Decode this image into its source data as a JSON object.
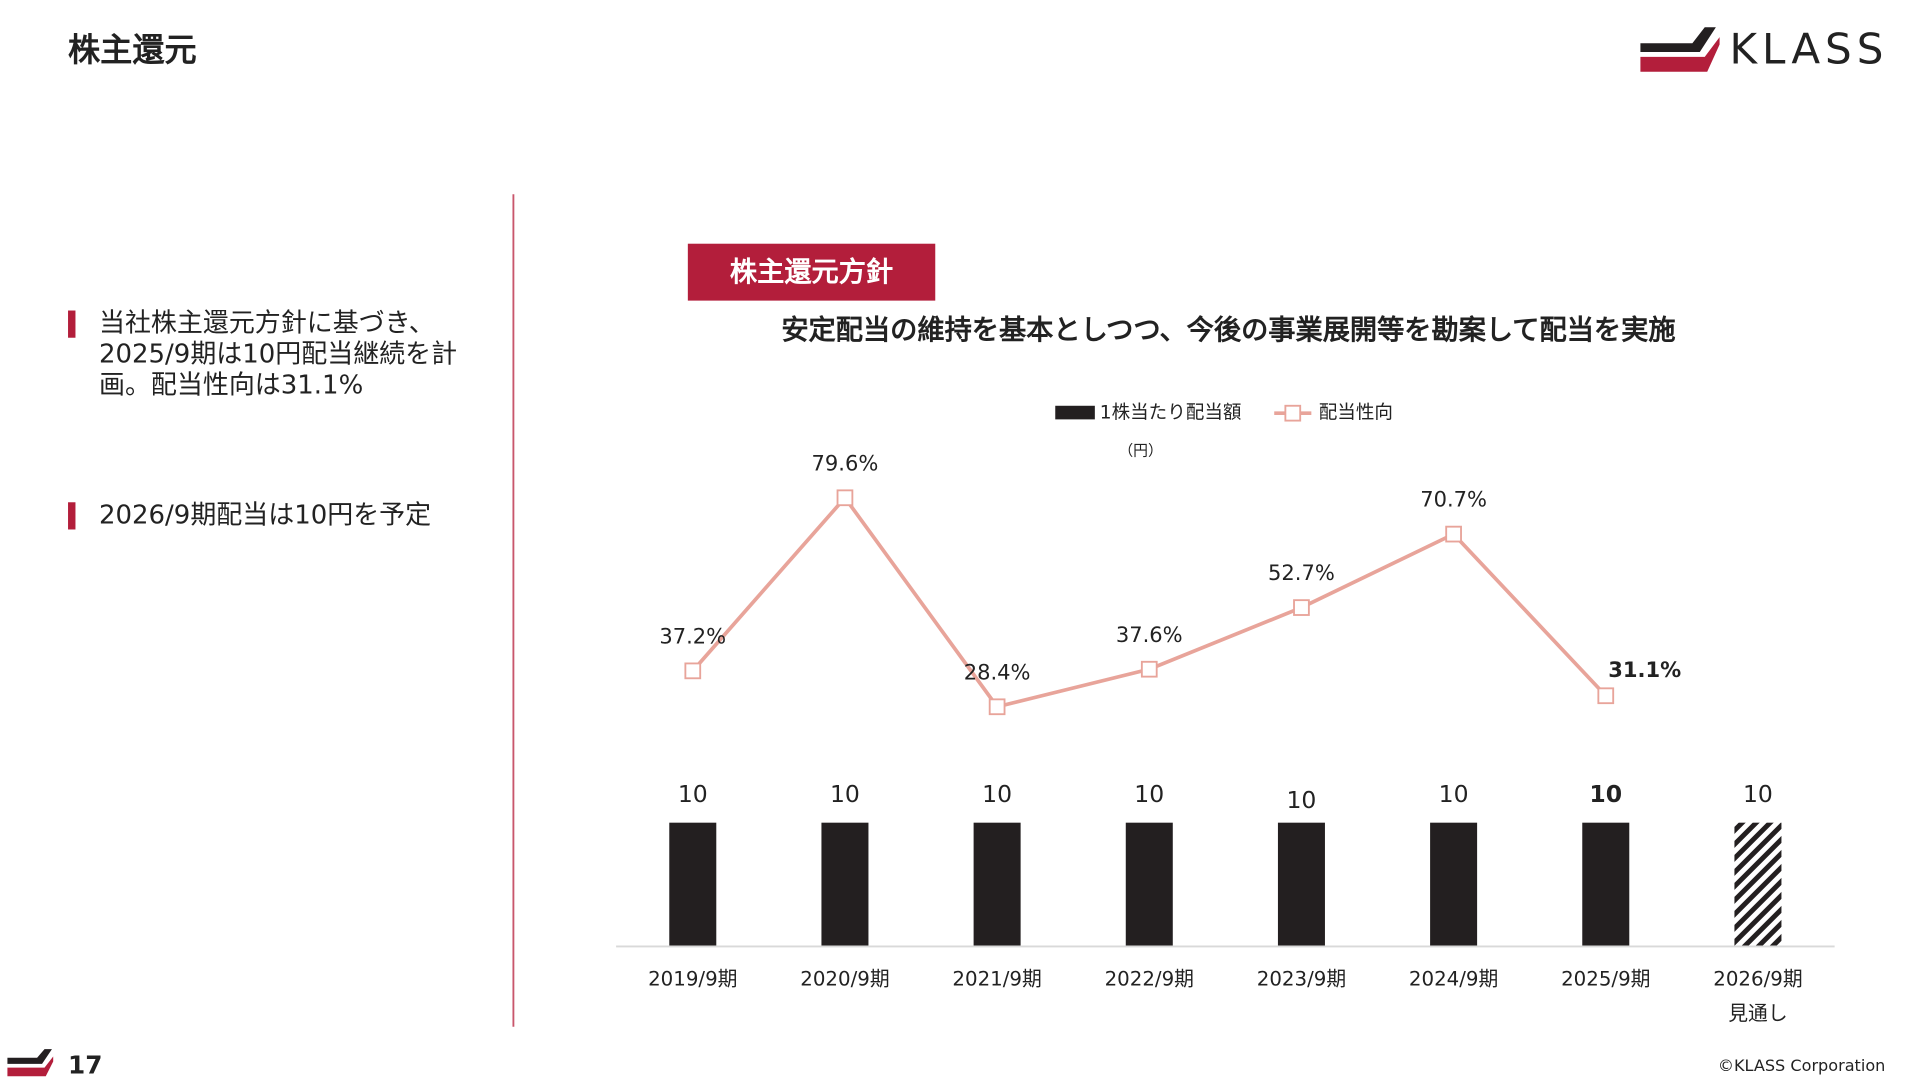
{
  "header": {
    "title": "株主還元",
    "logo": "KLASS"
  },
  "bullets": [
    {
      "lines": [
        "当社株主還元方針に基づき、",
        "2025/9期は10円配当継続を計",
        "画。配当性向は31.1%"
      ]
    },
    {
      "lines": [
        "2026/9期配当は10円を予定"
      ]
    }
  ],
  "policy": {
    "badge": "株主還元方針",
    "text": "安定配当の維持を基本としつつ、今後の事業展開等を勘案して配当を実施"
  },
  "footer": {
    "page": "17",
    "copyright": "©KLASS Corporation"
  },
  "chart_data": {
    "type": "bar-line",
    "categories": [
      "2019/9期",
      "2020/9期",
      "2021/9期",
      "2022/9期",
      "2023/9期",
      "2024/9期",
      "2025/9期",
      "2026/9期"
    ],
    "forecast_label": "見通し",
    "unit_label": "（円）",
    "highlight_index": 6,
    "series": [
      {
        "name": "1株当たり配当額",
        "color": "#231f20",
        "type": "bar",
        "values": [
          10,
          10,
          10,
          10,
          10,
          10,
          10,
          10
        ],
        "forecast_pattern": "hatch"
      },
      {
        "name": "配当性向",
        "color": "#e8a49a",
        "type": "line",
        "axis": "y2",
        "values": [
          37.2,
          79.6,
          28.4,
          37.6,
          52.7,
          70.7,
          31.1,
          null
        ],
        "value_labels": [
          "37.2%",
          "79.6%",
          "28.4%",
          "37.6%",
          "52.7%",
          "70.7%",
          "31.1%",
          null
        ]
      }
    ],
    "ylim": [
      0,
      42.5
    ],
    "y2lim": [
      -30.3,
      98.5
    ],
    "legend": "top"
  }
}
